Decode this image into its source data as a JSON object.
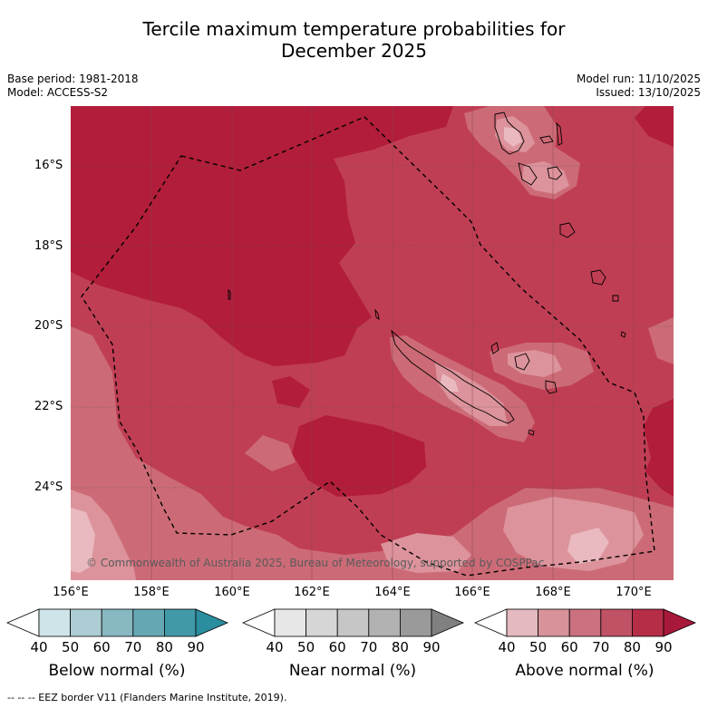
{
  "title": {
    "line1": "Tercile maximum temperature probabilities for",
    "line2": "December 2025"
  },
  "meta": {
    "base_period": "Base period: 1981-2018",
    "model": "Model: ACCESS-S2",
    "model_run": "Model run: 11/10/2025",
    "issued": "Issued: 13/10/2025"
  },
  "map": {
    "lat_labels": [
      "16°S",
      "18°S",
      "20°S",
      "22°S",
      "24°S"
    ],
    "lon_labels": [
      "156°E",
      "158°E",
      "160°E",
      "162°E",
      "164°E",
      "166°E",
      "168°E",
      "170°E"
    ],
    "copyright": "© Commonwealth of Australia 2025, Bureau of Meteorology, supported by COSPPac",
    "colors": {
      "above_80": "#b11d3a",
      "above_70": "#c03e54",
      "above_60": "#cc6b77",
      "above_50": "#dc939b",
      "above_40": "#e9b9bf"
    }
  },
  "colorbars": {
    "ticks": [
      "40",
      "50",
      "60",
      "70",
      "80",
      "90"
    ],
    "below": {
      "title": "Below normal (%)",
      "colors": [
        "#ffffff",
        "#cfe4e8",
        "#abcdd3",
        "#88b8c1",
        "#65a7b3",
        "#4199a8",
        "#2a8e9f"
      ]
    },
    "near": {
      "title": "Near normal (%)",
      "colors": [
        "#ffffff",
        "#e7e7e7",
        "#d6d6d6",
        "#c6c6c6",
        "#b2b2b2",
        "#9a9a9a",
        "#808080"
      ]
    },
    "above": {
      "title": "Above normal (%)",
      "colors": [
        "#ffffff",
        "#e4b9bf",
        "#d89299",
        "#cb7180",
        "#bf5265",
        "#b52d47",
        "#a8183a"
      ]
    }
  },
  "footer": {
    "legend": "--  --  -- EEZ border V11 (Flanders Marine Institute, 2019)."
  }
}
